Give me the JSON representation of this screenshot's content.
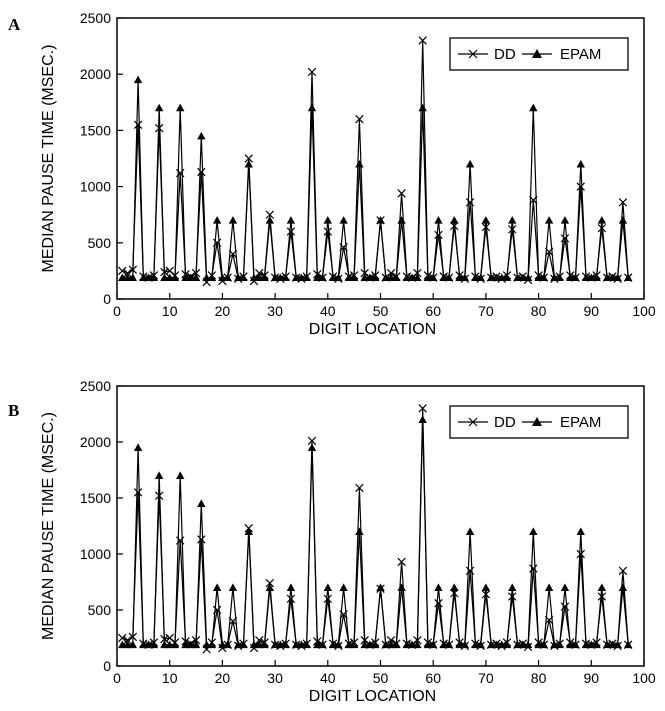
{
  "chart_data": [
    {
      "panel_label": "A",
      "type": "line",
      "xlabel": "DIGIT LOCATION",
      "ylabel": "MEDIAN PAUSE TIME (MSEC.)",
      "xlim": [
        0,
        100
      ],
      "ylim": [
        0,
        2500
      ],
      "xticks": [
        0,
        10,
        20,
        30,
        40,
        50,
        60,
        70,
        80,
        90,
        100
      ],
      "yticks": [
        0,
        500,
        1000,
        1500,
        2000,
        2500
      ],
      "grid": false,
      "legend_position": "top-right",
      "series": [
        {
          "name": "DD",
          "marker": "x",
          "x": [
            1,
            2,
            3,
            4,
            5,
            6,
            7,
            8,
            9,
            10,
            11,
            12,
            13,
            14,
            15,
            16,
            17,
            18,
            19,
            20,
            21,
            22,
            23,
            24,
            25,
            26,
            27,
            28,
            29,
            30,
            31,
            32,
            33,
            34,
            35,
            36,
            37,
            38,
            39,
            40,
            41,
            42,
            43,
            44,
            45,
            46,
            47,
            48,
            49,
            50,
            51,
            52,
            53,
            54,
            55,
            56,
            57,
            58,
            59,
            60,
            61,
            62,
            63,
            64,
            65,
            66,
            67,
            68,
            69,
            70,
            71,
            72,
            73,
            74,
            75,
            76,
            77,
            78,
            79,
            80,
            81,
            82,
            83,
            84,
            85,
            86,
            87,
            88,
            89,
            90,
            91,
            92,
            93,
            94,
            95,
            96,
            97
          ],
          "y": [
            250,
            230,
            260,
            1550,
            200,
            190,
            210,
            1520,
            240,
            250,
            210,
            1120,
            220,
            200,
            230,
            1130,
            150,
            210,
            500,
            160,
            190,
            400,
            180,
            200,
            1250,
            160,
            230,
            210,
            750,
            190,
            180,
            200,
            600,
            190,
            180,
            200,
            2020,
            220,
            190,
            600,
            200,
            180,
            460,
            200,
            210,
            1600,
            230,
            190,
            210,
            700,
            190,
            230,
            200,
            940,
            200,
            190,
            230,
            2300,
            210,
            190,
            570,
            200,
            190,
            650,
            210,
            180,
            860,
            200,
            180,
            640,
            190,
            200,
            180,
            210,
            620,
            190,
            200,
            170,
            880,
            210,
            190,
            420,
            180,
            200,
            540,
            210,
            190,
            1000,
            200,
            190,
            210,
            630,
            190,
            200,
            180,
            860,
            190
          ],
          "color": "#000000"
        },
        {
          "name": "EPAM",
          "marker": "triangle",
          "x": [
            1,
            2,
            3,
            4,
            5,
            6,
            7,
            8,
            9,
            10,
            11,
            12,
            13,
            14,
            15,
            16,
            17,
            18,
            19,
            20,
            21,
            22,
            23,
            24,
            25,
            26,
            27,
            28,
            29,
            30,
            31,
            32,
            33,
            34,
            35,
            36,
            37,
            38,
            39,
            40,
            41,
            42,
            43,
            44,
            45,
            46,
            47,
            48,
            49,
            50,
            51,
            52,
            53,
            54,
            55,
            56,
            57,
            58,
            59,
            60,
            61,
            62,
            63,
            64,
            65,
            66,
            67,
            68,
            69,
            70,
            71,
            72,
            73,
            74,
            75,
            76,
            77,
            78,
            79,
            80,
            81,
            82,
            83,
            84,
            85,
            86,
            87,
            88,
            89,
            90,
            91,
            92,
            93,
            94,
            95,
            96,
            97
          ],
          "y": [
            190,
            190,
            190,
            1950,
            190,
            190,
            190,
            1700,
            190,
            190,
            190,
            1700,
            190,
            190,
            190,
            1450,
            190,
            190,
            700,
            190,
            190,
            700,
            190,
            190,
            1200,
            190,
            190,
            190,
            700,
            190,
            190,
            190,
            700,
            190,
            190,
            190,
            1700,
            190,
            190,
            700,
            190,
            190,
            700,
            190,
            190,
            1200,
            190,
            190,
            190,
            700,
            190,
            190,
            190,
            700,
            190,
            190,
            190,
            1700,
            190,
            190,
            700,
            190,
            190,
            700,
            190,
            190,
            1200,
            190,
            190,
            700,
            190,
            190,
            190,
            190,
            700,
            190,
            190,
            190,
            1700,
            190,
            190,
            700,
            190,
            190,
            700,
            190,
            190,
            1200,
            190,
            190,
            190,
            700,
            190,
            190,
            190,
            700,
            190
          ],
          "color": "#000000"
        }
      ]
    },
    {
      "panel_label": "B",
      "type": "line",
      "xlabel": "DIGIT LOCATION",
      "ylabel": "MEDIAN PAUSE TIME (MSEC.)",
      "xlim": [
        0,
        100
      ],
      "ylim": [
        0,
        2500
      ],
      "xticks": [
        0,
        10,
        20,
        30,
        40,
        50,
        60,
        70,
        80,
        90,
        100
      ],
      "yticks": [
        0,
        500,
        1000,
        1500,
        2000,
        2500
      ],
      "grid": false,
      "legend_position": "top-right",
      "series": [
        {
          "name": "DD",
          "marker": "x",
          "x": [
            1,
            2,
            3,
            4,
            5,
            6,
            7,
            8,
            9,
            10,
            11,
            12,
            13,
            14,
            15,
            16,
            17,
            18,
            19,
            20,
            21,
            22,
            23,
            24,
            25,
            26,
            27,
            28,
            29,
            30,
            31,
            32,
            33,
            34,
            35,
            36,
            37,
            38,
            39,
            40,
            41,
            42,
            43,
            44,
            45,
            46,
            47,
            48,
            49,
            50,
            51,
            52,
            53,
            54,
            55,
            56,
            57,
            58,
            59,
            60,
            61,
            62,
            63,
            64,
            65,
            66,
            67,
            68,
            69,
            70,
            71,
            72,
            73,
            74,
            75,
            76,
            77,
            78,
            79,
            80,
            81,
            82,
            83,
            84,
            85,
            86,
            87,
            88,
            89,
            90,
            91,
            92,
            93,
            94,
            95,
            96,
            97
          ],
          "y": [
            250,
            230,
            260,
            1550,
            200,
            190,
            210,
            1520,
            240,
            250,
            210,
            1120,
            220,
            200,
            230,
            1130,
            150,
            210,
            500,
            160,
            190,
            400,
            180,
            200,
            1230,
            160,
            230,
            210,
            740,
            190,
            180,
            200,
            600,
            190,
            180,
            200,
            2010,
            220,
            190,
            600,
            200,
            180,
            460,
            200,
            210,
            1590,
            230,
            190,
            210,
            690,
            190,
            230,
            200,
            930,
            200,
            190,
            230,
            2300,
            210,
            190,
            560,
            200,
            190,
            650,
            210,
            180,
            850,
            200,
            180,
            640,
            190,
            200,
            180,
            210,
            620,
            190,
            200,
            170,
            870,
            210,
            190,
            410,
            180,
            200,
            530,
            210,
            190,
            1000,
            200,
            190,
            210,
            620,
            190,
            200,
            180,
            850,
            190
          ],
          "color": "#000000"
        },
        {
          "name": "EPAM",
          "marker": "triangle",
          "x": [
            1,
            2,
            3,
            4,
            5,
            6,
            7,
            8,
            9,
            10,
            11,
            12,
            13,
            14,
            15,
            16,
            17,
            18,
            19,
            20,
            21,
            22,
            23,
            24,
            25,
            26,
            27,
            28,
            29,
            30,
            31,
            32,
            33,
            34,
            35,
            36,
            37,
            38,
            39,
            40,
            41,
            42,
            43,
            44,
            45,
            46,
            47,
            48,
            49,
            50,
            51,
            52,
            53,
            54,
            55,
            56,
            57,
            58,
            59,
            60,
            61,
            62,
            63,
            64,
            65,
            66,
            67,
            68,
            69,
            70,
            71,
            72,
            73,
            74,
            75,
            76,
            77,
            78,
            79,
            80,
            81,
            82,
            83,
            84,
            85,
            86,
            87,
            88,
            89,
            90,
            91,
            92,
            93,
            94,
            95,
            96,
            97
          ],
          "y": [
            190,
            190,
            190,
            1950,
            190,
            190,
            190,
            1700,
            190,
            190,
            190,
            1700,
            190,
            190,
            190,
            1450,
            190,
            190,
            700,
            190,
            190,
            700,
            190,
            190,
            1200,
            190,
            190,
            190,
            700,
            190,
            190,
            190,
            700,
            190,
            190,
            190,
            1950,
            190,
            190,
            700,
            190,
            190,
            700,
            190,
            190,
            1200,
            190,
            190,
            190,
            700,
            190,
            190,
            190,
            700,
            190,
            190,
            190,
            2200,
            190,
            190,
            700,
            190,
            190,
            700,
            190,
            190,
            1200,
            190,
            190,
            700,
            190,
            190,
            190,
            190,
            700,
            190,
            190,
            190,
            1200,
            190,
            190,
            700,
            190,
            190,
            700,
            190,
            190,
            1200,
            190,
            190,
            190,
            700,
            190,
            190,
            190,
            700,
            190
          ],
          "color": "#000000"
        }
      ]
    }
  ]
}
